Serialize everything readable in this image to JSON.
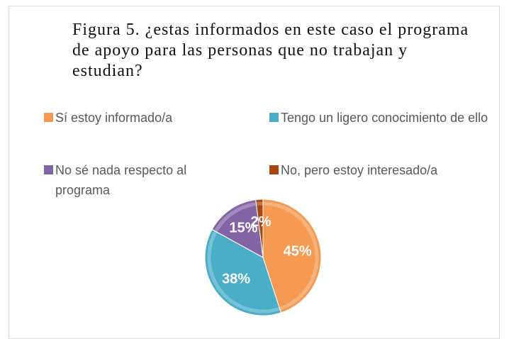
{
  "chart_data": {
    "type": "pie",
    "title": "Figura 5. ¿estas informados en este caso el programa de apoyo para las personas que no trabajan y estudian?",
    "categories": [
      "Sí estoy informado/a",
      "Tengo un ligero conocimiento de ello",
      "No sé nada respecto al programa",
      "No, pero estoy interesado/a"
    ],
    "values": [
      45,
      38,
      15,
      2
    ],
    "value_labels": [
      "45%",
      "38%",
      "15%",
      "2%"
    ],
    "colors": [
      "#f59a52",
      "#4aaec8",
      "#8365a6",
      "#a8480f"
    ],
    "legend": "top"
  }
}
